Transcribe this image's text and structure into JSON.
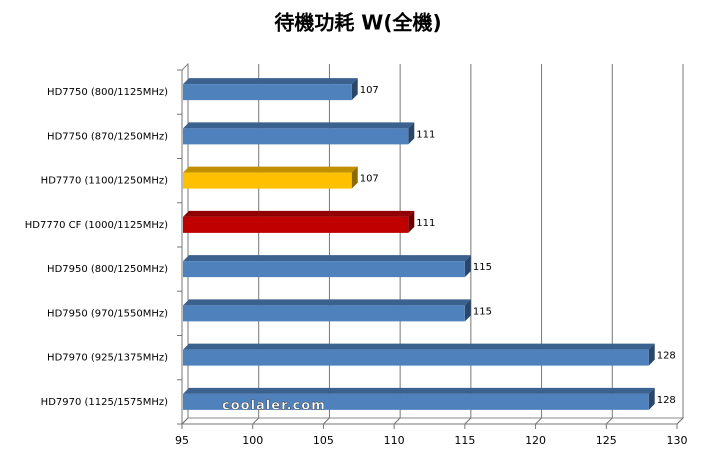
{
  "chart_data": {
    "type": "hbar3d",
    "title": "待機功耗 W(全機)",
    "categories": [
      "HD7750 (800/1125MHz)",
      "HD7750 (870/1250MHz)",
      "HD7770 (1100/1250MHz)",
      "HD7770 CF (1000/1125MHz)",
      "HD7950 (800/1250MHz)",
      "HD7950 (970/1550MHz)",
      "HD7970 (925/1375MHz)",
      "HD7970 (1125/1575MHz)"
    ],
    "values": [
      107,
      111,
      107,
      111,
      115,
      115,
      128,
      128
    ],
    "colors": [
      "#4f81bd",
      "#4f81bd",
      "#ffc000",
      "#c00000",
      "#4f81bd",
      "#4f81bd",
      "#4f81bd",
      "#4f81bd"
    ],
    "xlim": [
      95,
      130
    ],
    "xticks": [
      95,
      100,
      105,
      110,
      115,
      120,
      125,
      130
    ],
    "grid": true,
    "watermark": "coolaler.com"
  }
}
